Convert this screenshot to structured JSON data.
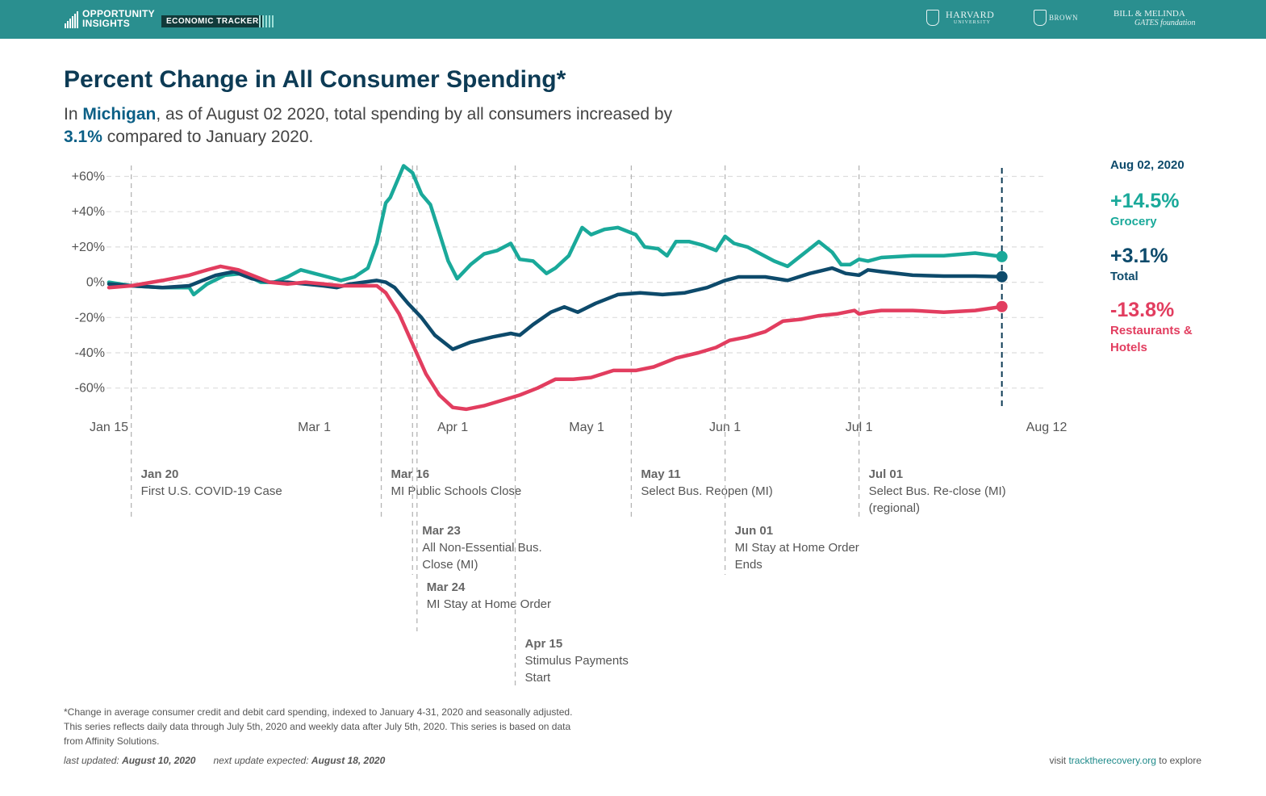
{
  "header": {
    "brand_line1": "OPPORTUNITY",
    "brand_line2": "INSIGHTS",
    "badge": "ECONOMIC TRACKER",
    "partner_harvard": "HARVARD",
    "partner_harvard_sub": "UNIVERSITY",
    "partner_brown": "BROWN",
    "partner_gates_line1": "BILL & MELINDA",
    "partner_gates_line2": "GATES foundation"
  },
  "title": "Percent Change in All Consumer Spending*",
  "subtitle": {
    "p1": "In ",
    "state": "Michigan",
    "p2": ", as of August 02 2020, total spending by all consumers increased by",
    "value": "3.1%",
    "p3": " compared to January 2020."
  },
  "legend": {
    "date": "Aug 02, 2020",
    "items": [
      {
        "value": "+14.5%",
        "name": "Grocery",
        "color": "#1aa99a"
      },
      {
        "value": "+3.1%",
        "name": "Total",
        "color": "#0d4a6b"
      },
      {
        "value": "-13.8%",
        "name_line1": "Restaurants &",
        "name_line2": "Hotels",
        "color": "#e23d5f"
      }
    ]
  },
  "colors": {
    "grocery": "#1aa99a",
    "total": "#0d4a6b",
    "restaurants": "#e23d5f",
    "header": "#2a8f8f",
    "title": "#0d3b55"
  },
  "chart_data": {
    "type": "line",
    "x_format": "date (2020)",
    "xlim": [
      "2020-01-15",
      "2020-08-12"
    ],
    "ylim": [
      -75,
      65
    ],
    "grid": true,
    "x_ticks": [
      {
        "date": "2020-01-15",
        "label": "Jan 15"
      },
      {
        "date": "2020-03-01",
        "label": "Mar 1"
      },
      {
        "date": "2020-04-01",
        "label": "Apr 1"
      },
      {
        "date": "2020-05-01",
        "label": "May 1"
      },
      {
        "date": "2020-06-01",
        "label": "Jun 1"
      },
      {
        "date": "2020-07-01",
        "label": "Jul 1"
      },
      {
        "date": "2020-08-12",
        "label": "Aug 12"
      }
    ],
    "y_ticks": [
      {
        "value": 60,
        "label": "+60%"
      },
      {
        "value": 40,
        "label": "+40%"
      },
      {
        "value": 20,
        "label": "+20%"
      },
      {
        "value": 0,
        "label": "0%"
      },
      {
        "value": -20,
        "label": "-20%"
      },
      {
        "value": -40,
        "label": "-40%"
      },
      {
        "value": -60,
        "label": "-60%"
      }
    ],
    "current_date": "2020-08-02",
    "series": [
      {
        "name": "Grocery",
        "color": "#1aa99a",
        "points": [
          [
            "2020-01-15",
            0
          ],
          [
            "2020-01-20",
            -2
          ],
          [
            "2020-01-27",
            -3
          ],
          [
            "2020-02-02",
            -3
          ],
          [
            "2020-02-03",
            -7
          ],
          [
            "2020-02-06",
            -1
          ],
          [
            "2020-02-10",
            4
          ],
          [
            "2020-02-14",
            5
          ],
          [
            "2020-02-18",
            0
          ],
          [
            "2020-02-21",
            0
          ],
          [
            "2020-02-24",
            3
          ],
          [
            "2020-02-27",
            7
          ],
          [
            "2020-03-01",
            5
          ],
          [
            "2020-03-04",
            3
          ],
          [
            "2020-03-07",
            1
          ],
          [
            "2020-03-10",
            3
          ],
          [
            "2020-03-13",
            8
          ],
          [
            "2020-03-15",
            22
          ],
          [
            "2020-03-17",
            45
          ],
          [
            "2020-03-18",
            48
          ],
          [
            "2020-03-20",
            60
          ],
          [
            "2020-03-21",
            66
          ],
          [
            "2020-03-23",
            62
          ],
          [
            "2020-03-25",
            50
          ],
          [
            "2020-03-27",
            44
          ],
          [
            "2020-03-29",
            28
          ],
          [
            "2020-03-31",
            12
          ],
          [
            "2020-04-02",
            2
          ],
          [
            "2020-04-05",
            10
          ],
          [
            "2020-04-08",
            16
          ],
          [
            "2020-04-11",
            18
          ],
          [
            "2020-04-14",
            22
          ],
          [
            "2020-04-16",
            13
          ],
          [
            "2020-04-19",
            12
          ],
          [
            "2020-04-22",
            5
          ],
          [
            "2020-04-24",
            8
          ],
          [
            "2020-04-27",
            15
          ],
          [
            "2020-04-30",
            31
          ],
          [
            "2020-05-02",
            27
          ],
          [
            "2020-05-05",
            30
          ],
          [
            "2020-05-08",
            31
          ],
          [
            "2020-05-12",
            27
          ],
          [
            "2020-05-14",
            20
          ],
          [
            "2020-05-17",
            19
          ],
          [
            "2020-05-19",
            15
          ],
          [
            "2020-05-21",
            23
          ],
          [
            "2020-05-24",
            23
          ],
          [
            "2020-05-27",
            21
          ],
          [
            "2020-05-30",
            18
          ],
          [
            "2020-06-01",
            26
          ],
          [
            "2020-06-03",
            22
          ],
          [
            "2020-06-06",
            20
          ],
          [
            "2020-06-09",
            16
          ],
          [
            "2020-06-12",
            12
          ],
          [
            "2020-06-15",
            9
          ],
          [
            "2020-06-17",
            13
          ],
          [
            "2020-06-20",
            19
          ],
          [
            "2020-06-22",
            23
          ],
          [
            "2020-06-25",
            17
          ],
          [
            "2020-06-27",
            10
          ],
          [
            "2020-06-29",
            10
          ],
          [
            "2020-07-01",
            13
          ],
          [
            "2020-07-03",
            12
          ],
          [
            "2020-07-06",
            14
          ],
          [
            "2020-07-13",
            15
          ],
          [
            "2020-07-20",
            15
          ],
          [
            "2020-07-27",
            16.5
          ],
          [
            "2020-08-02",
            14.5
          ]
        ]
      },
      {
        "name": "Total",
        "color": "#0d4a6b",
        "points": [
          [
            "2020-01-15",
            -1
          ],
          [
            "2020-01-20",
            -2
          ],
          [
            "2020-01-27",
            -3
          ],
          [
            "2020-02-02",
            -2
          ],
          [
            "2020-02-05",
            1
          ],
          [
            "2020-02-08",
            4
          ],
          [
            "2020-02-12",
            6
          ],
          [
            "2020-02-16",
            2
          ],
          [
            "2020-02-20",
            0
          ],
          [
            "2020-02-24",
            0
          ],
          [
            "2020-02-28",
            -1
          ],
          [
            "2020-03-03",
            -2
          ],
          [
            "2020-03-06",
            -3
          ],
          [
            "2020-03-09",
            -1
          ],
          [
            "2020-03-12",
            0
          ],
          [
            "2020-03-15",
            1
          ],
          [
            "2020-03-17",
            0
          ],
          [
            "2020-03-19",
            -3
          ],
          [
            "2020-03-22",
            -12
          ],
          [
            "2020-03-25",
            -20
          ],
          [
            "2020-03-28",
            -30
          ],
          [
            "2020-04-01",
            -38
          ],
          [
            "2020-04-05",
            -34
          ],
          [
            "2020-04-10",
            -31
          ],
          [
            "2020-04-14",
            -29
          ],
          [
            "2020-04-16",
            -30
          ],
          [
            "2020-04-19",
            -24
          ],
          [
            "2020-04-23",
            -17
          ],
          [
            "2020-04-26",
            -14
          ],
          [
            "2020-04-29",
            -17
          ],
          [
            "2020-05-03",
            -12
          ],
          [
            "2020-05-08",
            -7
          ],
          [
            "2020-05-13",
            -6
          ],
          [
            "2020-05-18",
            -7
          ],
          [
            "2020-05-23",
            -6
          ],
          [
            "2020-05-28",
            -3
          ],
          [
            "2020-06-01",
            1
          ],
          [
            "2020-06-04",
            3
          ],
          [
            "2020-06-10",
            3
          ],
          [
            "2020-06-15",
            1
          ],
          [
            "2020-06-20",
            5
          ],
          [
            "2020-06-25",
            8
          ],
          [
            "2020-06-28",
            5
          ],
          [
            "2020-07-01",
            4
          ],
          [
            "2020-07-03",
            7
          ],
          [
            "2020-07-06",
            6
          ],
          [
            "2020-07-13",
            4
          ],
          [
            "2020-07-20",
            3.5
          ],
          [
            "2020-07-27",
            3.5
          ],
          [
            "2020-08-02",
            3.1
          ]
        ]
      },
      {
        "name": "Restaurants & Hotels",
        "color": "#e23d5f",
        "points": [
          [
            "2020-01-15",
            -3
          ],
          [
            "2020-01-20",
            -2
          ],
          [
            "2020-01-27",
            1
          ],
          [
            "2020-02-02",
            4
          ],
          [
            "2020-02-06",
            7
          ],
          [
            "2020-02-09",
            9
          ],
          [
            "2020-02-13",
            7
          ],
          [
            "2020-02-16",
            4
          ],
          [
            "2020-02-20",
            0
          ],
          [
            "2020-02-24",
            -1
          ],
          [
            "2020-02-28",
            0
          ],
          [
            "2020-03-03",
            -1
          ],
          [
            "2020-03-07",
            -2
          ],
          [
            "2020-03-11",
            -2
          ],
          [
            "2020-03-15",
            -2
          ],
          [
            "2020-03-17",
            -6
          ],
          [
            "2020-03-20",
            -18
          ],
          [
            "2020-03-23",
            -35
          ],
          [
            "2020-03-26",
            -52
          ],
          [
            "2020-03-29",
            -64
          ],
          [
            "2020-04-01",
            -71
          ],
          [
            "2020-04-04",
            -72
          ],
          [
            "2020-04-08",
            -70
          ],
          [
            "2020-04-12",
            -67
          ],
          [
            "2020-04-16",
            -64
          ],
          [
            "2020-04-20",
            -60
          ],
          [
            "2020-04-24",
            -55
          ],
          [
            "2020-04-28",
            -55
          ],
          [
            "2020-05-02",
            -54
          ],
          [
            "2020-05-07",
            -50
          ],
          [
            "2020-05-12",
            -50
          ],
          [
            "2020-05-16",
            -48
          ],
          [
            "2020-05-21",
            -43
          ],
          [
            "2020-05-26",
            -40
          ],
          [
            "2020-05-30",
            -37
          ],
          [
            "2020-06-02",
            -33
          ],
          [
            "2020-06-06",
            -31
          ],
          [
            "2020-06-10",
            -28
          ],
          [
            "2020-06-14",
            -22
          ],
          [
            "2020-06-18",
            -21
          ],
          [
            "2020-06-22",
            -19
          ],
          [
            "2020-06-26",
            -18
          ],
          [
            "2020-06-30",
            -16
          ],
          [
            "2020-07-01",
            -18
          ],
          [
            "2020-07-03",
            -17
          ],
          [
            "2020-07-06",
            -16
          ],
          [
            "2020-07-13",
            -16
          ],
          [
            "2020-07-20",
            -17
          ],
          [
            "2020-07-27",
            -16
          ],
          [
            "2020-08-02",
            -13.8
          ]
        ]
      }
    ],
    "events": [
      {
        "date": "2020-01-20",
        "label_date": "Jan 20",
        "line1": "First U.S. COVID-19 Case",
        "line2": "",
        "tier": 1
      },
      {
        "date": "2020-03-16",
        "label_date": "Mar 16",
        "line1": "MI Public Schools Close",
        "line2": "",
        "tier": 1
      },
      {
        "date": "2020-03-23",
        "label_date": "Mar 23",
        "line1": "All Non-Essential Bus.",
        "line2": "Close (MI)",
        "tier": 2
      },
      {
        "date": "2020-03-24",
        "label_date": "Mar 24",
        "line1": "MI Stay at Home Order",
        "line2": "",
        "tier": 3
      },
      {
        "date": "2020-04-15",
        "label_date": "Apr 15",
        "line1": "Stimulus Payments",
        "line2": "Start",
        "tier": 4
      },
      {
        "date": "2020-05-11",
        "label_date": "May 11",
        "line1": "Select Bus. Reopen (MI)",
        "line2": "",
        "tier": 1
      },
      {
        "date": "2020-06-01",
        "label_date": "Jun 01",
        "line1": "MI Stay at Home Order",
        "line2": "Ends",
        "tier": 2
      },
      {
        "date": "2020-07-01",
        "label_date": "Jul 01",
        "line1": "Select Bus. Re-close (MI)",
        "line2": "(regional)",
        "tier": 1
      }
    ]
  },
  "footnote": {
    "line1": "*Change in average consumer credit and debit card spending, indexed to January 4-31, 2020 and seasonally adjusted.",
    "line2": "This series reflects daily data through July 5th, 2020 and weekly data after July 5th, 2020. This series is based on data",
    "line3": "from Affinity Solutions."
  },
  "updates": {
    "last_label": "last updated: ",
    "last_value": "August 10, 2020",
    "next_label": "next update expected: ",
    "next_value": "August 18, 2020"
  },
  "visit": {
    "pre": "visit ",
    "link": "tracktherecovery.org",
    "post": " to explore"
  }
}
